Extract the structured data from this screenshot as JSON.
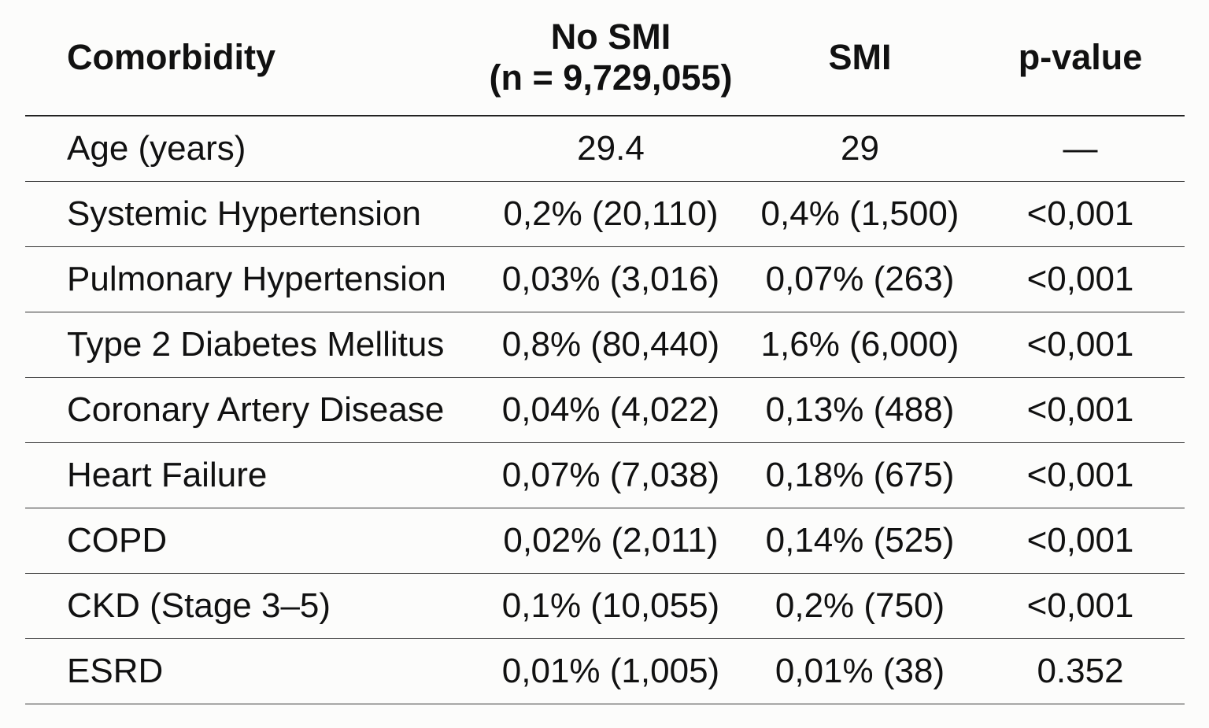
{
  "table": {
    "header": [
      "Comorbidity",
      "No SMI",
      "SMI",
      "p-value"
    ],
    "no_smi_n": "(n = 9,729,055)",
    "rows": [
      [
        "Age (years)",
        "29.4",
        "29",
        "—"
      ],
      [
        "Systemic Hypertension",
        "0,2% (20,110)",
        "0,4% (1,500)",
        "<0,001"
      ],
      [
        "Pulmonary Hypertension",
        "0,03% (3,016)",
        "0,07% (263)",
        "<0,001"
      ],
      [
        "Type 2 Diabetes Mellitus",
        "0,8% (80,440)",
        "1,6% (6,000)",
        "<0,001"
      ],
      [
        "Coronary Artery Disease",
        "0,04% (4,022)",
        "0,13% (488)",
        "<0,001"
      ],
      [
        "Heart Failure",
        "0,07% (7,038)",
        "0,18% (675)",
        "<0,001"
      ],
      [
        "COPD",
        "0,02% (2,011)",
        "0,14% (525)",
        "<0,001"
      ],
      [
        "CKD (Stage 3–5)",
        "0,1% (10,055)",
        "0,2% (750)",
        "<0,001"
      ],
      [
        "ESRD",
        "0,01% (1,005)",
        "0,01% (38)",
        "0.352"
      ]
    ]
  }
}
